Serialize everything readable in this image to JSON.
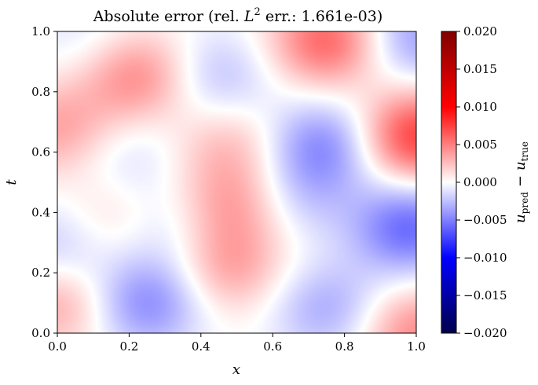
{
  "chart_data": {
    "type": "heatmap",
    "title": "Absolute error (rel. L² err.: 1.661e-03)",
    "title_parts": {
      "prefix": "Absolute error (rel. ",
      "L": "L",
      "sup": "2",
      "suffix": " err.: 1.661e-03)"
    },
    "xlabel": "x",
    "ylabel": "t",
    "xlim": [
      0,
      1
    ],
    "ylim": [
      0,
      1
    ],
    "xticks": [
      "0.0",
      "0.2",
      "0.4",
      "0.6",
      "0.8",
      "1.0"
    ],
    "yticks": [
      "0.0",
      "0.2",
      "0.4",
      "0.6",
      "0.8",
      "1.0"
    ],
    "colorbar": {
      "label": "u_pred − u_true",
      "label_parts": {
        "u1": "u",
        "sub1": "pred",
        "minus": "−",
        "u2": "u",
        "sub2": "true"
      },
      "range": [
        -0.02,
        0.02
      ],
      "colormap": "seismic",
      "ticks": [
        "−0.020",
        "−0.015",
        "−0.010",
        "−0.005",
        "0.000",
        "0.005",
        "0.010",
        "0.015",
        "0.020"
      ]
    },
    "field_features": [
      {
        "x": 0.22,
        "t": 0.85,
        "value": 0.0045
      },
      {
        "x": 0.75,
        "t": 0.97,
        "value": 0.006
      },
      {
        "x": 1.0,
        "t": 0.65,
        "value": 0.0075
      },
      {
        "x": 0.0,
        "t": 0.68,
        "value": 0.0035
      },
      {
        "x": 0.48,
        "t": 0.62,
        "value": 0.0025
      },
      {
        "x": 0.48,
        "t": 0.42,
        "value": 0.0035
      },
      {
        "x": 0.15,
        "t": 0.38,
        "value": 0.0018
      },
      {
        "x": 0.48,
        "t": 0.22,
        "value": 0.0035
      },
      {
        "x": 0.0,
        "t": 0.1,
        "value": 0.0035
      },
      {
        "x": 1.0,
        "t": 0.0,
        "value": 0.0045
      },
      {
        "x": 0.25,
        "t": 0.1,
        "value": -0.0045
      },
      {
        "x": 0.0,
        "t": 0.28,
        "value": -0.0025
      },
      {
        "x": 0.74,
        "t": 0.62,
        "value": -0.0045
      },
      {
        "x": 0.98,
        "t": 0.35,
        "value": -0.0058
      },
      {
        "x": 0.68,
        "t": 0.45,
        "value": -0.0018
      },
      {
        "x": 0.75,
        "t": 0.08,
        "value": -0.0032
      },
      {
        "x": 1.0,
        "t": 0.98,
        "value": -0.0038
      },
      {
        "x": 0.45,
        "t": 0.85,
        "value": -0.0025
      },
      {
        "x": 0.2,
        "t": 0.58,
        "value": -0.0015
      },
      {
        "x": 0.32,
        "t": 0.35,
        "value": -0.0018
      },
      {
        "x": 0.08,
        "t": 0.98,
        "value": -0.0012
      }
    ]
  }
}
